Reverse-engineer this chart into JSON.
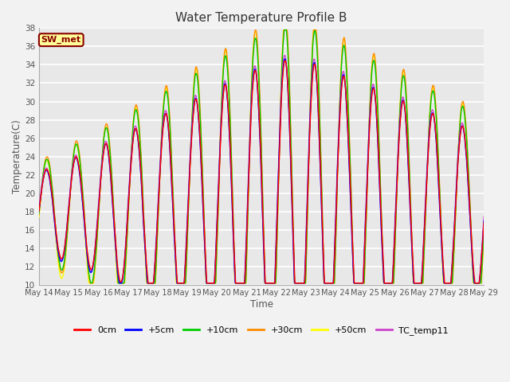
{
  "title": "Water Temperature Profile B",
  "xlabel": "Time",
  "ylabel": "Temperature(C)",
  "ylim": [
    10,
    38
  ],
  "yticks": [
    10,
    12,
    14,
    16,
    18,
    20,
    22,
    24,
    26,
    28,
    30,
    32,
    34,
    36,
    38
  ],
  "annotation_text": "SW_met",
  "annotation_color": "#8B0000",
  "annotation_bg": "#FFFF99",
  "annotation_border": "#8B0000",
  "plot_bg_color": "#E8E8E8",
  "fig_bg_color": "#F2F2F2",
  "grid_color": "#FFFFFF",
  "series_colors": {
    "0cm": "#FF0000",
    "+5cm": "#0000FF",
    "+10cm": "#00CC00",
    "+30cm": "#FF8C00",
    "+50cm": "#FFFF00",
    "TC_temp11": "#CC44CC"
  },
  "x_tick_labels": [
    "May 14",
    "May 15",
    "May 16",
    "May 17",
    "May 18",
    "May 19",
    "May 20",
    "May 21",
    "May 22",
    "May 23",
    "May 24",
    "May 25",
    "May 26",
    "May 27",
    "May 28",
    "May 29"
  ],
  "figsize": [
    6.4,
    4.8
  ],
  "dpi": 100
}
